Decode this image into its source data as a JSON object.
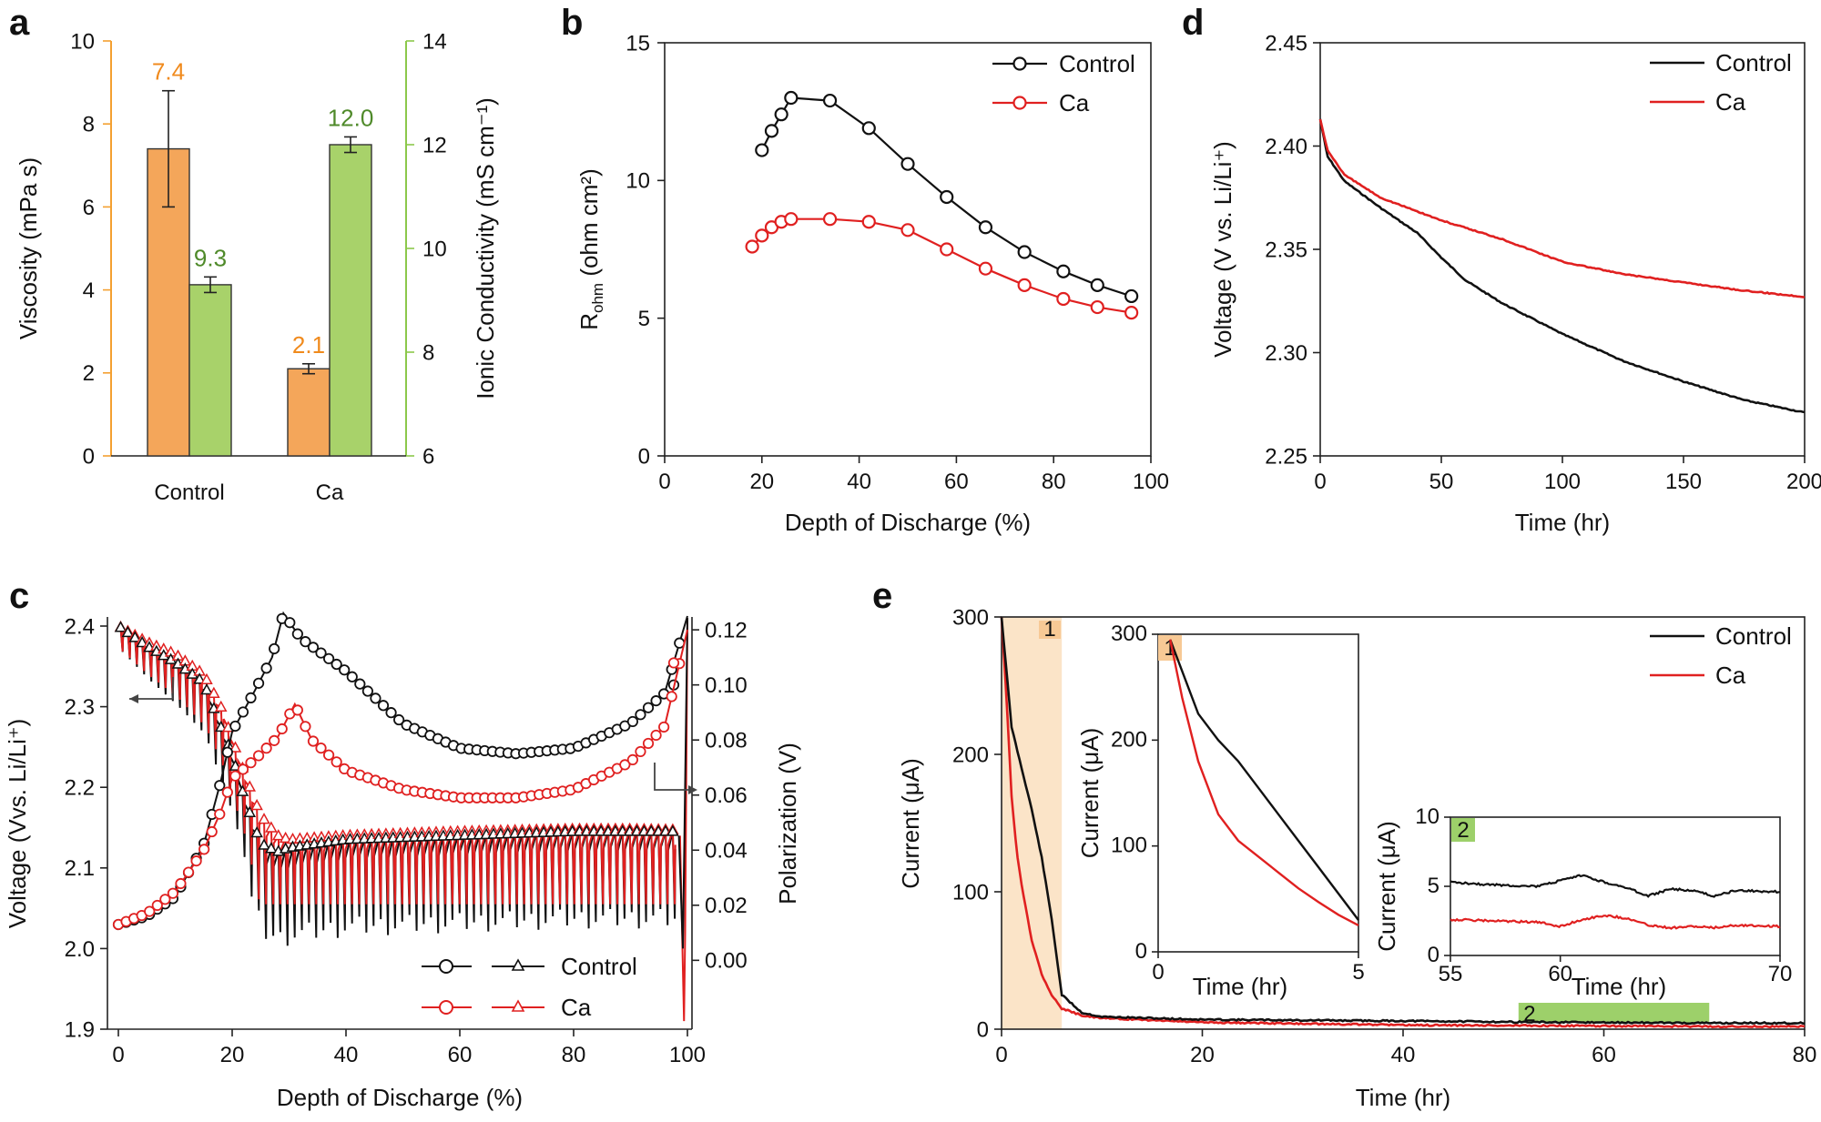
{
  "colors": {
    "control": "#111111",
    "ca": "#e02020",
    "bar_orange": "#f4a65a",
    "bar_green": "#a8d26a",
    "label_orange": "#f08a1c",
    "label_green": "#4f8a2a",
    "axis_orange": "#f4a030",
    "axis_green": "#8cc84b",
    "shade1": "#fbe4c8",
    "shade2": "#9dd06a"
  },
  "chart_data": [
    {
      "panel": "a",
      "type": "bar",
      "categories": [
        "Control",
        "Ca"
      ],
      "series": [
        {
          "name": "Viscosity",
          "axis": "left",
          "values": [
            7.4,
            2.1
          ],
          "errors": [
            1.4,
            0.12
          ],
          "labels": [
            "7.4",
            "2.1"
          ]
        },
        {
          "name": "Ionic Conductivity",
          "axis": "right",
          "values": [
            9.3,
            12.0
          ],
          "errors": [
            0.15,
            0.15
          ],
          "labels": [
            "9.3",
            "12.0"
          ]
        }
      ],
      "ylabel": "Viscosity (mPa s)",
      "ylim": [
        0,
        10
      ],
      "yticks": [
        "0",
        "2",
        "4",
        "6",
        "8",
        "10"
      ],
      "y2label": "Ionic Conductivity (mS cm⁻¹)",
      "y2lim": [
        6,
        14
      ],
      "y2ticks": [
        "6",
        "8",
        "10",
        "12",
        "14"
      ]
    },
    {
      "panel": "b",
      "type": "line",
      "xlabel": "Depth of Discharge (%)",
      "ylabel_main": "R",
      "ylabel_sub": "ohm",
      "ylabel_unit": " (ohm cm²)",
      "xlim": [
        0,
        100
      ],
      "ylim": [
        0,
        15
      ],
      "xticks": [
        "0",
        "20",
        "40",
        "60",
        "80",
        "100"
      ],
      "yticks": [
        "0",
        "5",
        "10",
        "15"
      ],
      "legend": [
        "Control",
        "Ca"
      ],
      "series": [
        {
          "name": "Control",
          "x": [
            20,
            22,
            24,
            26,
            34,
            42,
            50,
            58,
            66,
            74,
            82,
            89,
            96
          ],
          "y": [
            11.1,
            11.8,
            12.4,
            13,
            12.9,
            11.9,
            10.6,
            9.4,
            8.3,
            7.4,
            6.7,
            6.2,
            5.8
          ]
        },
        {
          "name": "Ca",
          "x": [
            18,
            20,
            22,
            24,
            26,
            34,
            42,
            50,
            58,
            66,
            74,
            82,
            89,
            96
          ],
          "y": [
            7.6,
            8,
            8.3,
            8.5,
            8.6,
            8.6,
            8.5,
            8.2,
            7.5,
            6.8,
            6.2,
            5.7,
            5.4,
            5.2
          ]
        }
      ]
    },
    {
      "panel": "c",
      "type": "line",
      "xlabel": "Depth of Discharge (%)",
      "ylabel": "Voltage (Vvs. Li/Li⁺)",
      "y2label": "Polarization (V)",
      "xlim": [
        0,
        100
      ],
      "ylim": [
        1.9,
        2.4
      ],
      "y2lim": [
        -0.025,
        0.125
      ],
      "xticks": [
        "0",
        "20",
        "40",
        "60",
        "80",
        "100"
      ],
      "yticks": [
        "1.9",
        "2.0",
        "2.1",
        "2.2",
        "2.3",
        "2.4"
      ],
      "y2ticks": [
        "0.00",
        "0.02",
        "0.04",
        "0.06",
        "0.08",
        "0.10",
        "0.12"
      ],
      "legend": [
        "Control",
        "Ca"
      ],
      "pol_control": {
        "x": [
          0,
          5,
          10,
          15,
          18,
          20,
          24,
          27,
          29,
          32,
          40,
          50,
          60,
          70,
          80,
          90,
          96,
          100
        ],
        "y": [
          0.013,
          0.016,
          0.023,
          0.042,
          0.065,
          0.083,
          0.098,
          0.11,
          0.126,
          0.117,
          0.105,
          0.086,
          0.077,
          0.075,
          0.077,
          0.086,
          0.097,
          0.125
        ]
      },
      "pol_ca": {
        "x": [
          0,
          5,
          10,
          15,
          18,
          20,
          24,
          28,
          31,
          34,
          40,
          50,
          60,
          70,
          80,
          90,
          96,
          100
        ],
        "y": [
          0.013,
          0.017,
          0.025,
          0.04,
          0.054,
          0.066,
          0.073,
          0.081,
          0.093,
          0.08,
          0.069,
          0.062,
          0.059,
          0.059,
          0.062,
          0.072,
          0.085,
          0.12
        ]
      },
      "volt_control": {
        "x": [
          0,
          5,
          10,
          15,
          18,
          20,
          22,
          25,
          28,
          30,
          40,
          60,
          80,
          90,
          98
        ],
        "y": [
          2.4,
          2.375,
          2.355,
          2.33,
          2.275,
          2.24,
          2.19,
          2.13,
          2.12,
          2.125,
          2.135,
          2.14,
          2.145,
          2.145,
          2.145
        ]
      },
      "volt_ca": {
        "x": [
          0,
          5,
          10,
          15,
          18,
          20,
          22,
          25,
          28,
          30,
          40,
          60,
          80,
          90,
          98
        ],
        "y": [
          2.4,
          2.38,
          2.365,
          2.34,
          2.3,
          2.26,
          2.22,
          2.165,
          2.14,
          2.135,
          2.14,
          2.145,
          2.148,
          2.148,
          2.147
        ]
      },
      "spike_min_control": 1.995,
      "spike_min_ca": 2.055
    },
    {
      "panel": "d",
      "type": "line",
      "xlabel": "Time (hr)",
      "ylabel": "Voltage (V vs. Li/Li⁺)",
      "xlim": [
        0,
        200
      ],
      "ylim": [
        2.25,
        2.45
      ],
      "xticks": [
        "0",
        "50",
        "100",
        "150",
        "200"
      ],
      "yticks": [
        "2.25",
        "2.30",
        "2.35",
        "2.40",
        "2.45"
      ],
      "legend": [
        "Control",
        "Ca"
      ],
      "series": [
        {
          "name": "Control",
          "x": [
            0,
            3,
            10,
            25,
            40,
            50,
            60,
            75,
            100,
            125,
            150,
            175,
            200
          ],
          "y": [
            2.413,
            2.395,
            2.383,
            2.37,
            2.358,
            2.346,
            2.335,
            2.324,
            2.309,
            2.296,
            2.286,
            2.277,
            2.271
          ]
        },
        {
          "name": "Ca",
          "x": [
            0,
            3,
            10,
            25,
            50,
            75,
            100,
            125,
            150,
            175,
            200
          ],
          "y": [
            2.413,
            2.398,
            2.386,
            2.375,
            2.364,
            2.355,
            2.344,
            2.338,
            2.334,
            2.33,
            2.327
          ]
        }
      ]
    },
    {
      "panel": "e",
      "type": "line",
      "xlabel": "Time (hr)",
      "ylabel": "Current (μA)",
      "xlim": [
        0,
        80
      ],
      "ylim": [
        0,
        300
      ],
      "xticks": [
        "0",
        "20",
        "40",
        "60",
        "80"
      ],
      "yticks": [
        "0",
        "100",
        "200",
        "300"
      ],
      "legend": [
        "Control",
        "Ca"
      ],
      "region_labels": [
        "1",
        "2"
      ],
      "series": [
        {
          "name": "Control",
          "x": [
            0,
            0.5,
            1,
            2,
            3,
            4,
            5,
            6,
            8,
            10,
            20,
            40,
            55,
            70,
            80
          ],
          "y": [
            300,
            260,
            220,
            190,
            160,
            125,
            80,
            25,
            12,
            9,
            7,
            6,
            5,
            4.5,
            4.5
          ]
        },
        {
          "name": "Ca",
          "x": [
            0,
            0.5,
            1,
            1.5,
            2,
            3,
            4,
            5,
            6,
            8,
            10,
            20,
            40,
            55,
            70,
            80
          ],
          "y": [
            300,
            240,
            170,
            130,
            105,
            65,
            40,
            25,
            15,
            10,
            8,
            5,
            3,
            2.5,
            2,
            2
          ]
        }
      ],
      "inset1": {
        "xlabel": "Time (hr)",
        "ylabel": "Current (μA)",
        "xlim": [
          0,
          5
        ],
        "ylim": [
          0,
          300
        ],
        "xticks": [
          "0",
          "5"
        ],
        "yticks": [
          "0",
          "100",
          "200",
          "300"
        ],
        "control": {
          "x": [
            0.3,
            0.6,
            1,
            1.5,
            2,
            2.5,
            3,
            3.5,
            4,
            4.5,
            5
          ],
          "y": [
            295,
            265,
            225,
            200,
            180,
            155,
            130,
            105,
            80,
            55,
            30
          ]
        },
        "ca": {
          "x": [
            0.3,
            0.6,
            1,
            1.5,
            2,
            2.5,
            3,
            3.5,
            4,
            4.5,
            5
          ],
          "y": [
            295,
            240,
            180,
            130,
            105,
            90,
            75,
            60,
            47,
            35,
            25
          ]
        }
      },
      "inset2": {
        "xlabel": "Time (hr)",
        "ylabel": "Current (μA)",
        "xlim": [
          55,
          70
        ],
        "ylim": [
          0,
          10
        ],
        "xticks": [
          "55",
          "60",
          "70"
        ],
        "yticks": [
          "0",
          "5",
          "10"
        ],
        "control": {
          "x": [
            55,
            57,
            59,
            60,
            61,
            62,
            63,
            64,
            65,
            66,
            67,
            68,
            70
          ],
          "y": [
            5.3,
            5.1,
            5.0,
            5.4,
            5.8,
            5.3,
            4.9,
            4.3,
            4.8,
            4.7,
            4.3,
            4.7,
            4.6
          ]
        },
        "ca": {
          "x": [
            55,
            57,
            59,
            60,
            61,
            62,
            63,
            64,
            65,
            66,
            67,
            68,
            70
          ],
          "y": [
            2.6,
            2.5,
            2.4,
            2.1,
            2.6,
            2.9,
            2.7,
            2.2,
            2.0,
            2.1,
            2.0,
            2.2,
            2.1
          ]
        }
      }
    }
  ]
}
